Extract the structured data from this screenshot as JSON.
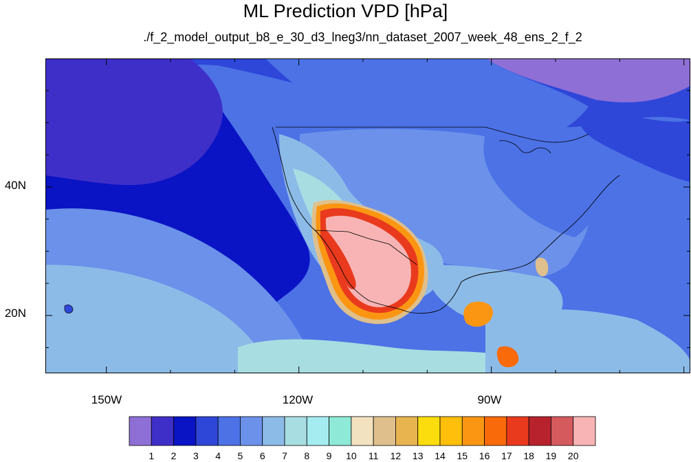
{
  "title": "ML Prediction VPD [hPa]",
  "subtitle": "./f_2_model_output_b8_e_30_d3_lneg3/nn_dataset_2007_week_48_ens_2_f_2",
  "axes": {
    "lat_labels": [
      {
        "value": 40,
        "label": "40N"
      },
      {
        "value": 20,
        "label": "20N"
      }
    ],
    "lon_labels": [
      {
        "value": -150,
        "label": "150W"
      },
      {
        "value": -120,
        "label": "120W"
      },
      {
        "value": -90,
        "label": "90W"
      }
    ],
    "lon_range": [
      -159.5,
      -59
    ],
    "lat_range": [
      11,
      60
    ]
  },
  "colorbar": {
    "labels": [
      "1",
      "2",
      "3",
      "4",
      "5",
      "6",
      "7",
      "8",
      "9",
      "10",
      "11",
      "12",
      "13",
      "14",
      "15",
      "16",
      "17",
      "18",
      "19",
      "20"
    ],
    "colors": [
      "#8e6fd6",
      "#3f2fc9",
      "#0a14c4",
      "#2e47d9",
      "#4c72e6",
      "#6b91ea",
      "#8dbbe8",
      "#a8dde2",
      "#a4ecf0",
      "#8ee9d6",
      "#f3e2c0",
      "#dfc08c",
      "#e8b450",
      "#fbdc0c",
      "#ffbf0a",
      "#fb9613",
      "#f96a0a",
      "#e93a1e",
      "#b8222c",
      "#d45a5e",
      "#f8b4b4"
    ]
  },
  "map_colors": {
    "ocean_north": "#2e47d9",
    "ocean_deep": "#0a14c4",
    "ocean_mid": "#4c72e6",
    "ocean_light": "#6b91ea",
    "tropic": "#8dbbe8",
    "tropic_aqua": "#a8dde2",
    "land_east": "#4c72e6",
    "land_central": "#6b91ea",
    "desert_hot": "#f8b4b4",
    "desert_edge": "#e93a1e"
  }
}
